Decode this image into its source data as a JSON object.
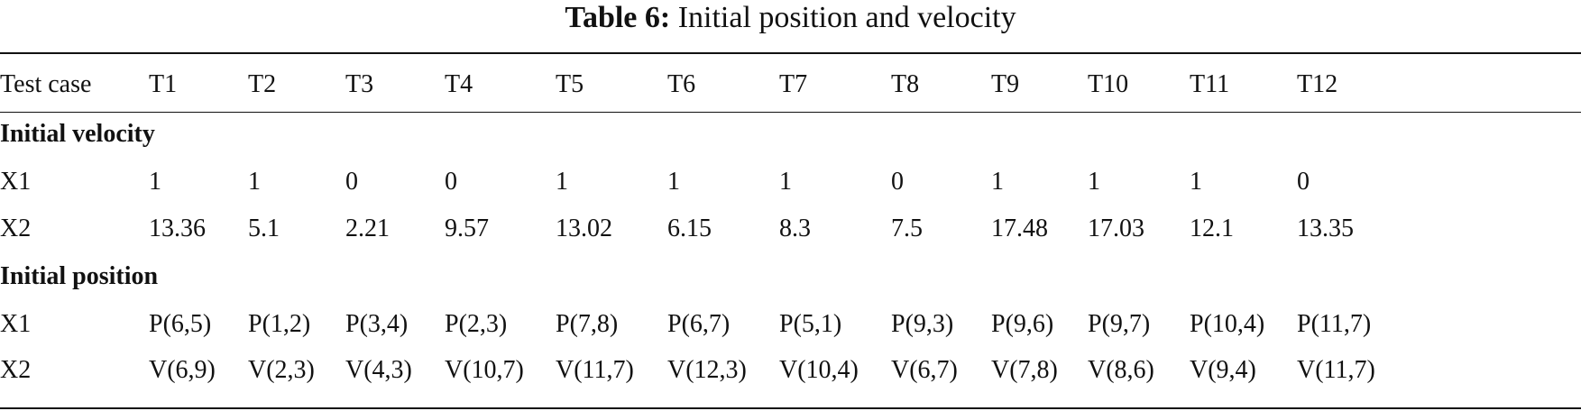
{
  "caption": {
    "label": "Table 6:",
    "text": "Initial position and velocity"
  },
  "table": {
    "columns": [
      "Test case",
      "T1",
      "T2",
      "T3",
      "T4",
      "T5",
      "T6",
      "T7",
      "T8",
      "T9",
      "T10",
      "T11",
      "T12"
    ],
    "sections": [
      {
        "title": "Initial velocity",
        "rows": [
          {
            "label": "X1",
            "cells": [
              "1",
              "1",
              "0",
              "0",
              "1",
              "1",
              "1",
              "0",
              "1",
              "1",
              "1",
              "0"
            ]
          },
          {
            "label": "X2",
            "cells": [
              "13.36",
              "5.1",
              "2.21",
              "9.57",
              "13.02",
              "6.15",
              "8.3",
              "7.5",
              "17.48",
              "17.03",
              "12.1",
              "13.35"
            ]
          }
        ]
      },
      {
        "title": "Initial position",
        "rows": [
          {
            "label": "X1",
            "cells": [
              "P(6,5)",
              "P(1,2)",
              "P(3,4)",
              "P(2,3)",
              "P(7,8)",
              "P(6,7)",
              "P(5,1)",
              "P(9,3)",
              "P(9,6)",
              "P(9,7)",
              "P(10,4)",
              "P(11,7)"
            ]
          },
          {
            "label": "X2",
            "cells": [
              "V(6,9)",
              "V(2,3)",
              "V(4,3)",
              "V(10,7)",
              "V(11,7)",
              "V(12,3)",
              "V(10,4)",
              "V(6,7)",
              "V(7,8)",
              "V(8,6)",
              "V(9,4)",
              "V(11,7)"
            ]
          }
        ]
      }
    ]
  }
}
